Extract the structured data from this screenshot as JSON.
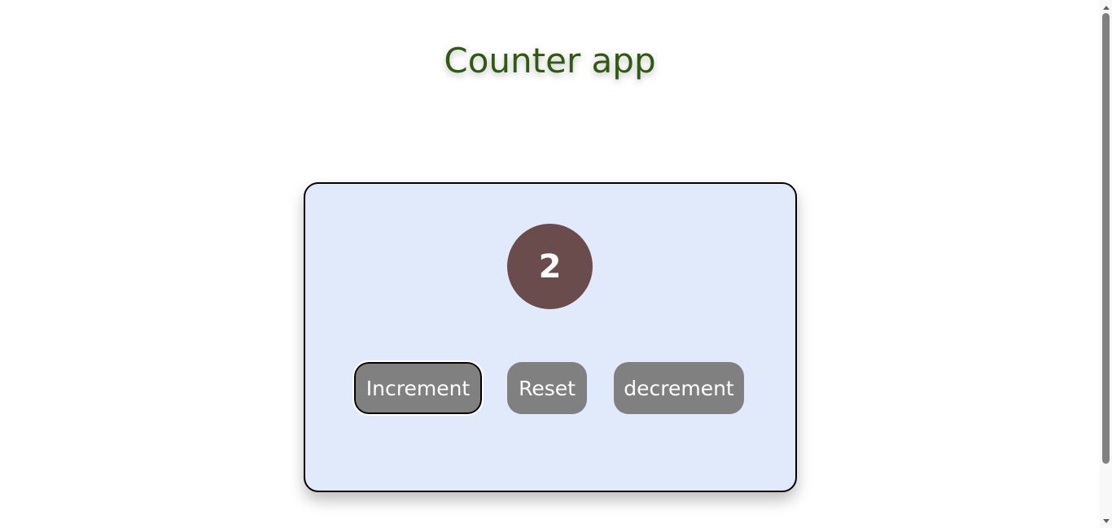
{
  "header": {
    "title": "Counter app"
  },
  "counter": {
    "value": "2"
  },
  "controls": {
    "increment_label": "Increment",
    "reset_label": "Reset",
    "decrement_label": "decrement"
  },
  "colors": {
    "title": "#2f5a12",
    "card_background": "#e1eafa",
    "counter_circle": "#6b4c4c",
    "button_background": "#808080"
  },
  "icons": {
    "scroll_up": "scroll-up-arrow-icon",
    "scroll_down": "scroll-down-arrow-icon"
  }
}
